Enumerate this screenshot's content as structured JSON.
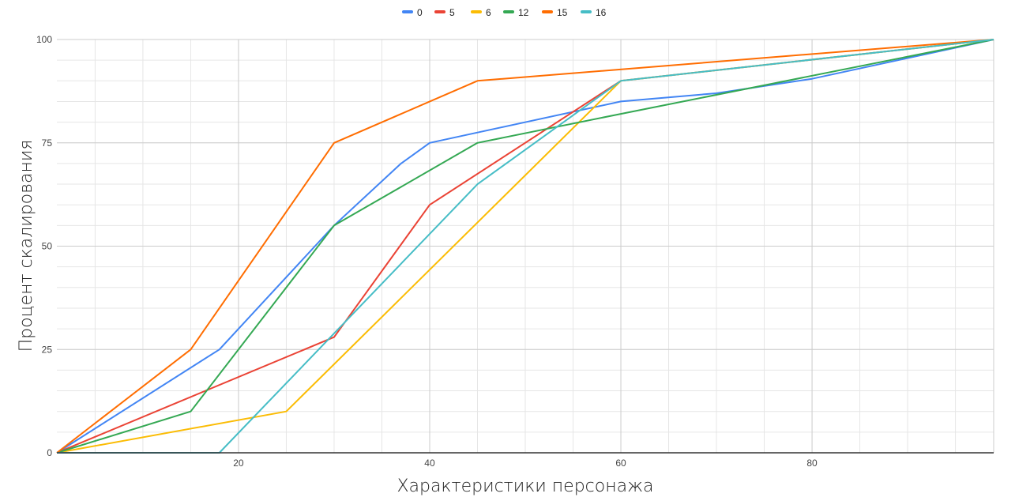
{
  "chart_data": {
    "type": "line",
    "title": "",
    "xlabel": "Характеристики персонажа",
    "ylabel": "Процент скалирования",
    "xlim": [
      1,
      99
    ],
    "ylim": [
      0,
      100
    ],
    "x_ticks": [
      20,
      40,
      60,
      80
    ],
    "y_ticks": [
      0,
      25,
      50,
      75,
      100
    ],
    "grid": true,
    "minor_grid_step": 5,
    "legend_position": "top",
    "series": [
      {
        "name": "0",
        "color": "#4285f4",
        "points": [
          [
            1,
            0
          ],
          [
            18,
            25
          ],
          [
            30,
            55
          ],
          [
            37,
            70
          ],
          [
            40,
            75
          ],
          [
            45,
            77.5
          ],
          [
            60,
            85
          ],
          [
            70,
            87
          ],
          [
            80,
            90.5
          ],
          [
            99,
            100
          ]
        ]
      },
      {
        "name": "5",
        "color": "#ea4335",
        "points": [
          [
            1,
            0
          ],
          [
            30,
            28
          ],
          [
            40,
            60
          ],
          [
            60,
            90
          ],
          [
            99,
            100
          ]
        ]
      },
      {
        "name": "6",
        "color": "#fbbc04",
        "points": [
          [
            1,
            0
          ],
          [
            25,
            10
          ],
          [
            60,
            90
          ],
          [
            99,
            100
          ]
        ]
      },
      {
        "name": "12",
        "color": "#34a853",
        "points": [
          [
            1,
            0
          ],
          [
            15,
            10
          ],
          [
            30,
            55
          ],
          [
            45,
            75
          ],
          [
            60,
            82
          ],
          [
            99,
            100
          ]
        ]
      },
      {
        "name": "15",
        "color": "#ff6d01",
        "points": [
          [
            1,
            0
          ],
          [
            15,
            25
          ],
          [
            30,
            75
          ],
          [
            45,
            90
          ],
          [
            99,
            100
          ]
        ]
      },
      {
        "name": "16",
        "color": "#46bdc6",
        "points": [
          [
            1,
            0
          ],
          [
            18,
            0
          ],
          [
            45,
            65
          ],
          [
            60,
            90
          ],
          [
            99,
            100
          ]
        ]
      }
    ]
  }
}
